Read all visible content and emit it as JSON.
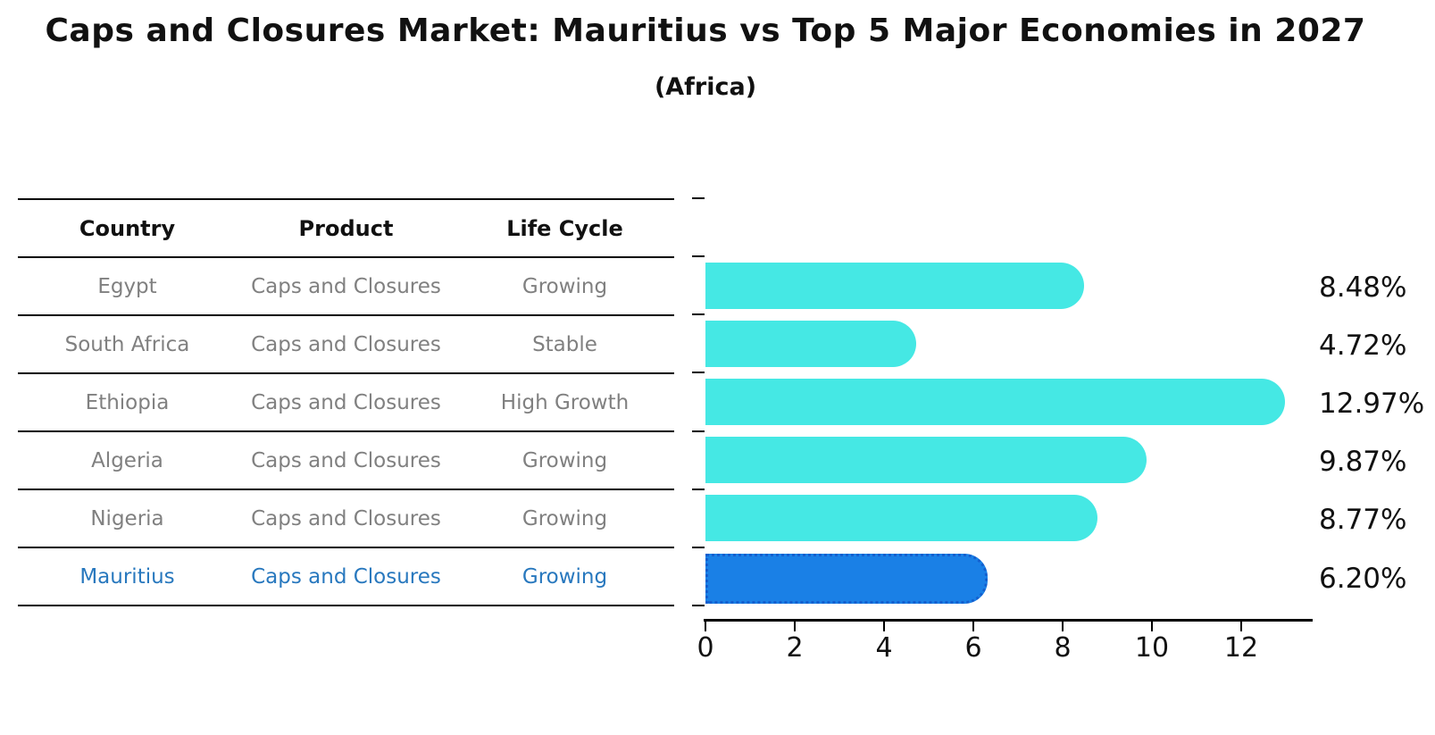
{
  "title": "Caps and Closures Market: Mauritius vs Top 5 Major Economies in 2027",
  "subtitle": "(Africa)",
  "table": {
    "headers": [
      "Country",
      "Product",
      "Life Cycle"
    ],
    "rows": [
      {
        "country": "Egypt",
        "product": "Caps and Closures",
        "life_cycle": "Growing",
        "highlight": false
      },
      {
        "country": "South Africa",
        "product": "Caps and Closures",
        "life_cycle": "Stable",
        "highlight": false
      },
      {
        "country": "Ethiopia",
        "product": "Caps and Closures",
        "life_cycle": "High Growth",
        "highlight": false
      },
      {
        "country": "Algeria",
        "product": "Caps and Closures",
        "life_cycle": "Growing",
        "highlight": false
      },
      {
        "country": "Nigeria",
        "product": "Caps and Closures",
        "life_cycle": "Growing",
        "highlight": true
      }
    ],
    "highlight_row": {
      "country": "Mauritius",
      "product": "Caps and Closures",
      "life_cycle": "Growing"
    }
  },
  "chart_data": {
    "type": "bar",
    "orientation": "horizontal",
    "title": "Caps and Closures Market: Mauritius vs Top 5 Major Economies in 2027 (Africa)",
    "categories": [
      "Egypt",
      "South Africa",
      "Ethiopia",
      "Algeria",
      "Nigeria",
      "Mauritius"
    ],
    "values": [
      8.48,
      4.72,
      12.97,
      9.87,
      8.77,
      6.2
    ],
    "value_labels": [
      "8.48%",
      "4.72%",
      "12.97%",
      "9.87%",
      "8.77%",
      "6.20%"
    ],
    "xlabel": "",
    "ylabel": "",
    "xlim": [
      0,
      13.6
    ],
    "x_ticks": [
      0,
      2,
      4,
      6,
      8,
      10,
      12
    ],
    "grid": false,
    "legend": false,
    "highlight_index": 5,
    "colors": {
      "bar": "#45e8e4",
      "highlight_bar": "#1a80e6",
      "highlight_border": "#145fce",
      "highlight_text": "#2878be",
      "table_text": "#808080",
      "header_text": "#111111",
      "label_text": "#111111"
    }
  }
}
